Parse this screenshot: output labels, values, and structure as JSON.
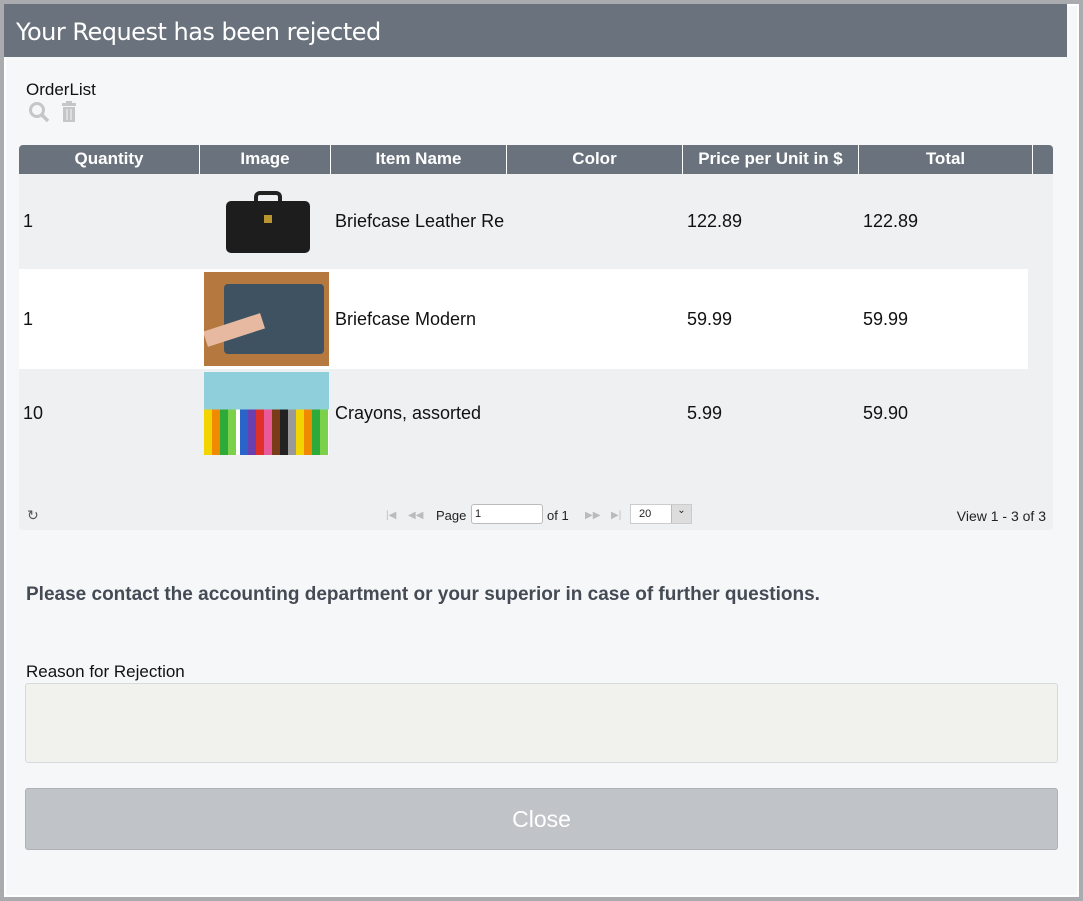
{
  "title": "Your Request has been rejected",
  "orderlist_label": "OrderList",
  "columns": [
    "Quantity",
    "Image",
    "Item Name",
    "Color",
    "Price per Unit in $",
    "Total"
  ],
  "rows": [
    {
      "quantity": "1",
      "image": "briefcase-leather",
      "item": "Briefcase Leather Re",
      "color": "",
      "price": "122.89",
      "total": "122.89"
    },
    {
      "quantity": "1",
      "image": "briefcase-modern",
      "item": "Briefcase Modern",
      "color": "",
      "price": "59.99",
      "total": "59.99"
    },
    {
      "quantity": "10",
      "image": "crayons",
      "item": "Crayons, assorted",
      "color": "",
      "price": "5.99",
      "total": "59.90"
    }
  ],
  "pager": {
    "page_label": "Page",
    "page": "1",
    "of_label": "of 1",
    "page_size": "20",
    "view": "View 1 - 3 of 3"
  },
  "message": "Please contact the accounting department or your superior in case of further questions.",
  "reason_label": "Reason for Rejection",
  "reason_value": "",
  "close_label": "Close"
}
